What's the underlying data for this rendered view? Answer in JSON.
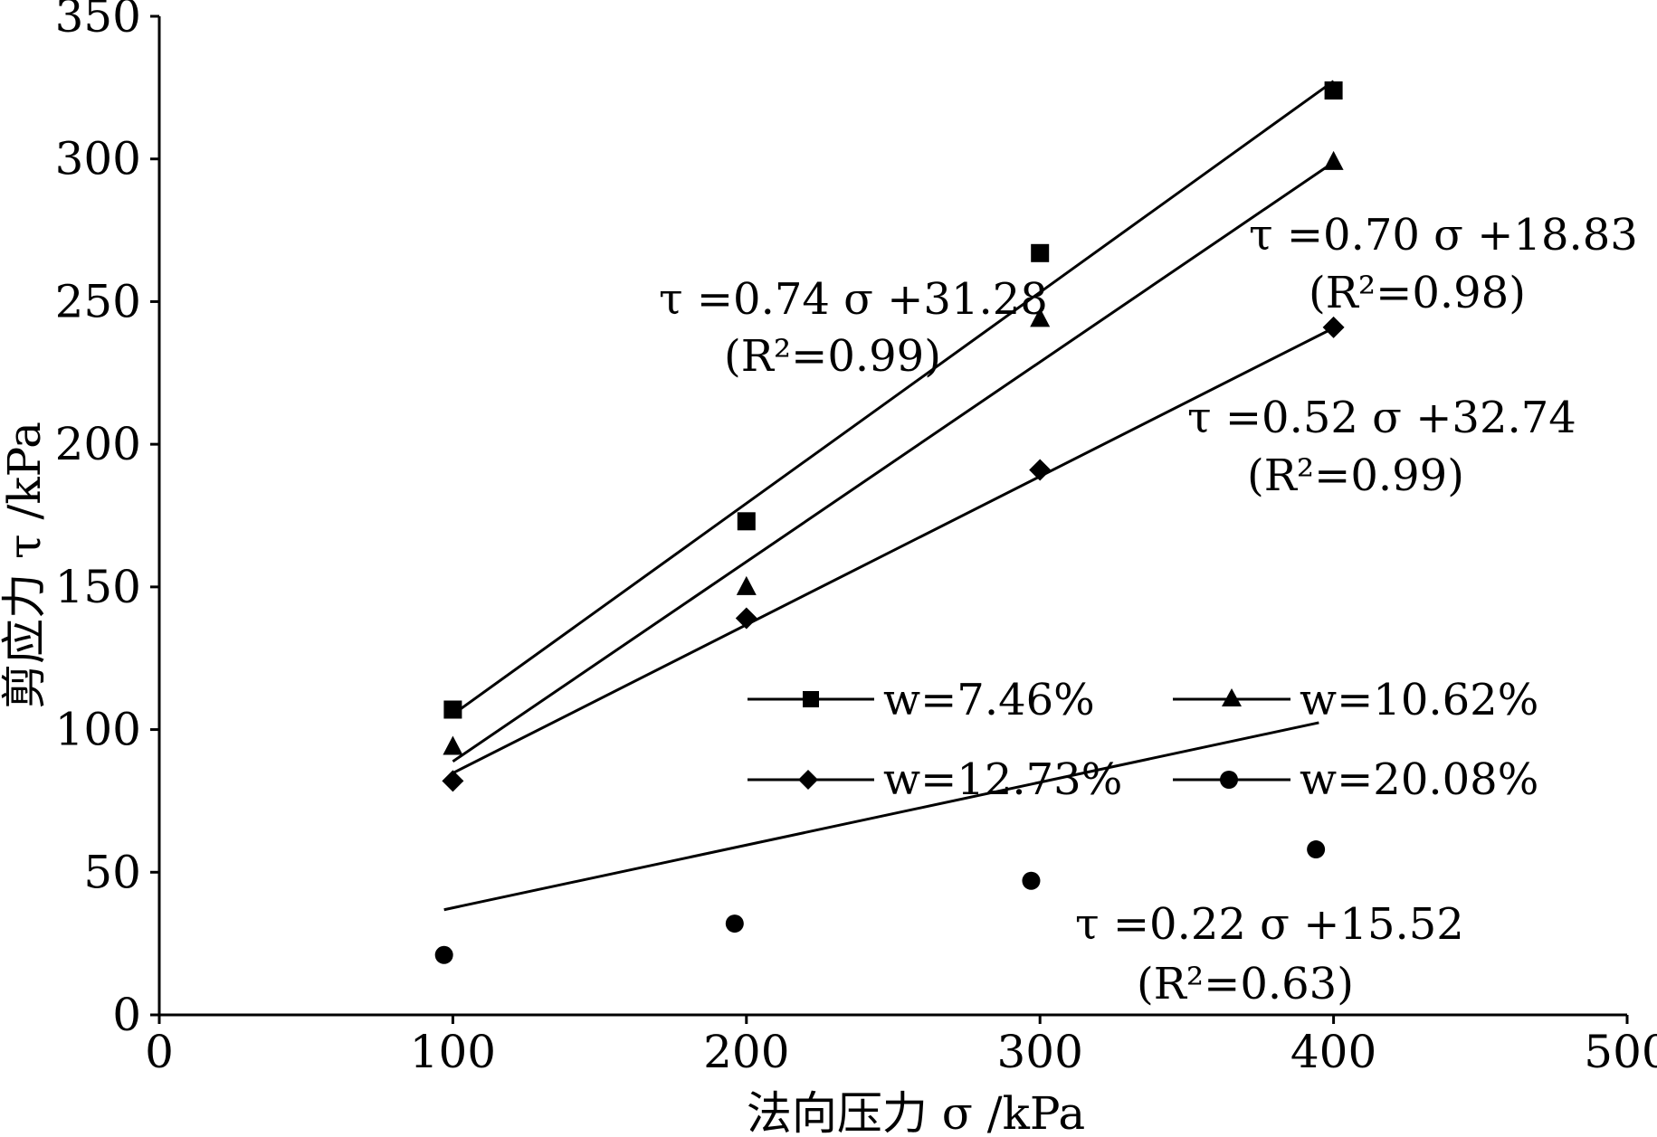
{
  "chart_data": {
    "type": "scatter",
    "xlabel": "法向压力 σ /kPa",
    "ylabel": "剪应力 τ /kPa",
    "xlim": [
      0,
      500
    ],
    "ylim": [
      0,
      350
    ],
    "x_ticks": [
      "0",
      "100",
      "200",
      "300",
      "400",
      "500"
    ],
    "y_ticks": [
      "0",
      "50",
      "100",
      "150",
      "200",
      "250",
      "300",
      "350"
    ],
    "grid": false,
    "legend_position": "center-right",
    "series": [
      {
        "name": "w=7.46%",
        "marker": "square",
        "points": [
          [
            100,
            107
          ],
          [
            200,
            173
          ],
          [
            300,
            267
          ],
          [
            400,
            324
          ]
        ],
        "fit": {
          "slope": 0.74,
          "intercept": 31.28,
          "x_range": [
            100,
            400
          ]
        },
        "equation": "τ =0.74 σ +31.28",
        "r2": "(R²=0.99)"
      },
      {
        "name": "w=10.62%",
        "marker": "triangle",
        "points": [
          [
            100,
            94
          ],
          [
            200,
            150
          ],
          [
            300,
            244
          ],
          [
            400,
            299
          ]
        ],
        "fit": {
          "slope": 0.7,
          "intercept": 18.83,
          "x_range": [
            100,
            400
          ]
        },
        "equation": "τ =0.70 σ +18.83",
        "r2": "(R²=0.98)"
      },
      {
        "name": "w=12.73%",
        "marker": "diamond",
        "points": [
          [
            100,
            82
          ],
          [
            200,
            139
          ],
          [
            300,
            191
          ],
          [
            400,
            241
          ]
        ],
        "fit": {
          "slope": 0.52,
          "intercept": 32.74,
          "x_range": [
            100,
            400
          ]
        },
        "equation": "τ =0.52 σ +32.74",
        "r2": "(R²=0.99)"
      },
      {
        "name": "w=20.08%",
        "marker": "circle",
        "points": [
          [
            97,
            21
          ],
          [
            196,
            32
          ],
          [
            297,
            47
          ],
          [
            394,
            58
          ]
        ],
        "fit": {
          "slope": 0.22,
          "intercept": 15.52,
          "x_range": [
            97,
            395
          ]
        },
        "equation": "τ =0.22 σ +15.52",
        "r2": "(R²=0.63)"
      }
    ]
  }
}
